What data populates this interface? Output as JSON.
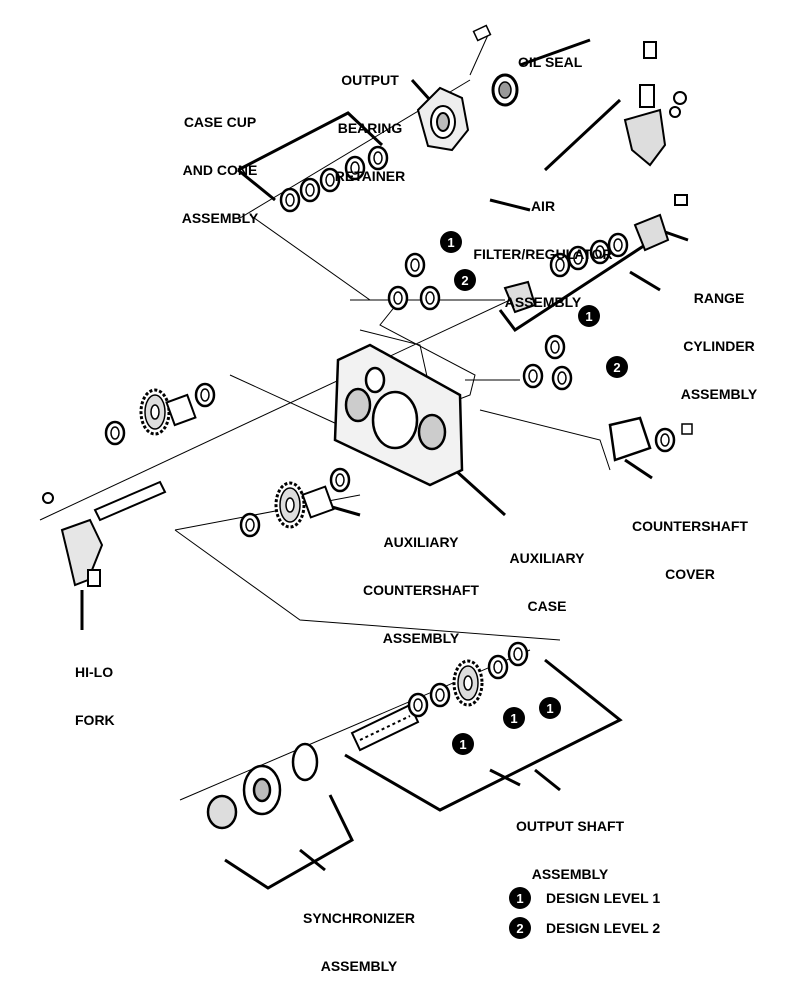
{
  "labels": {
    "oil_seal": [
      "OIL SEAL"
    ],
    "output_bearing_retainer": [
      "OUTPUT",
      "BEARING",
      "RETAINER"
    ],
    "case_cup_cone": [
      "CASE CUP",
      "AND CONE",
      "ASSEMBLY"
    ],
    "air_filter": [
      "AIR",
      "FILTER/REGULATOR",
      "ASSEMBLY"
    ],
    "range_cylinder": [
      "RANGE",
      "CYLINDER",
      "ASSEMBLY"
    ],
    "countershaft_cover": [
      "COUNTERSHAFT",
      "COVER"
    ],
    "aux_countershaft": [
      "AUXILIARY",
      "COUNTERSHAFT",
      "ASSEMBLY"
    ],
    "aux_case": [
      "AUXILIARY",
      "CASE"
    ],
    "hi_lo_fork": [
      "HI-LO",
      "FORK"
    ],
    "output_shaft": [
      "OUTPUT SHAFT",
      "ASSEMBLY"
    ],
    "synchronizer": [
      "SYNCHRONIZER",
      "ASSEMBLY"
    ]
  },
  "badges": {
    "one": "1",
    "two": "2"
  },
  "legend": [
    {
      "num": "1",
      "text": "DESIGN LEVEL 1"
    },
    {
      "num": "2",
      "text": "DESIGN LEVEL 2"
    }
  ],
  "colors": {
    "ink": "#000000",
    "paper": "#ffffff",
    "shade": "#bdbdbd"
  }
}
